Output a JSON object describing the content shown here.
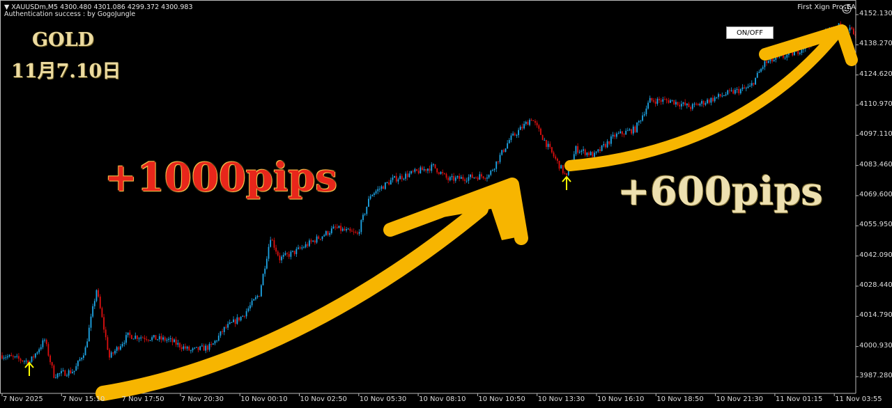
{
  "header": {
    "symbol_line": "XAUUSDm,M5  4300.480 4301.086 4299.372 4300.983",
    "auth_line": "Authentication success : by GogoJungle",
    "ea_name": "First Xign Pro_EA",
    "ea_icon": "smiley-icon",
    "onoff_label": "ON/OFF"
  },
  "annotations": {
    "title": "GOLD",
    "date": "11月7.10日",
    "gain1": "+1000pips",
    "gain2": "+600pips",
    "arrow_color": "#f7b500",
    "gain1_color": "#e8261b",
    "gain2_color": "#ede0b0"
  },
  "chart_data": {
    "type": "candlestick",
    "timeframe": "M5",
    "up_color": "#1ea7e8",
    "down_color": "#e01010",
    "ylim": [
      3987.28,
      4152.13
    ],
    "y_ticks": [
      "4152.130",
      "4138.270",
      "4124.620",
      "4110.970",
      "4097.110",
      "4083.460",
      "4069.600",
      "4055.950",
      "4042.090",
      "4028.440",
      "4014.790",
      "4000.930",
      "3987.280"
    ],
    "x_ticks": [
      "7 Nov 2025",
      "7 Nov 15:10",
      "7 Nov 17:50",
      "7 Nov 20:30",
      "10 Nov 00:10",
      "10 Nov 02:50",
      "10 Nov 05:30",
      "10 Nov 08:10",
      "10 Nov 10:50",
      "10 Nov 13:30",
      "10 Nov 16:10",
      "10 Nov 18:50",
      "10 Nov 21:30",
      "11 Nov 01:15",
      "11 Nov 03:55"
    ],
    "bars_per_tick": 32,
    "price_path_bar_close": [
      [
        0,
        3997
      ],
      [
        15,
        3994
      ],
      [
        23,
        4004
      ],
      [
        28,
        3988
      ],
      [
        39,
        3990
      ],
      [
        45,
        4000
      ],
      [
        51,
        4027
      ],
      [
        58,
        3996
      ],
      [
        68,
        4006
      ],
      [
        90,
        4004
      ],
      [
        102,
        3999
      ],
      [
        113,
        4001
      ],
      [
        120,
        4009
      ],
      [
        130,
        4015
      ],
      [
        139,
        4025
      ],
      [
        145,
        4051
      ],
      [
        150,
        4041
      ],
      [
        158,
        4044
      ],
      [
        180,
        4055
      ],
      [
        192,
        4052
      ],
      [
        199,
        4070
      ],
      [
        211,
        4077
      ],
      [
        233,
        4083
      ],
      [
        241,
        4077
      ],
      [
        263,
        4079
      ],
      [
        274,
        4095
      ],
      [
        286,
        4105
      ],
      [
        297,
        4089
      ],
      [
        305,
        4078
      ],
      [
        310,
        4091
      ],
      [
        320,
        4088
      ],
      [
        331,
        4097
      ],
      [
        342,
        4100
      ],
      [
        350,
        4113
      ],
      [
        361,
        4113
      ],
      [
        372,
        4110
      ],
      [
        391,
        4116
      ],
      [
        404,
        4119
      ],
      [
        412,
        4130
      ],
      [
        429,
        4135
      ],
      [
        444,
        4144
      ],
      [
        451,
        4147
      ],
      [
        461,
        4144
      ]
    ]
  }
}
